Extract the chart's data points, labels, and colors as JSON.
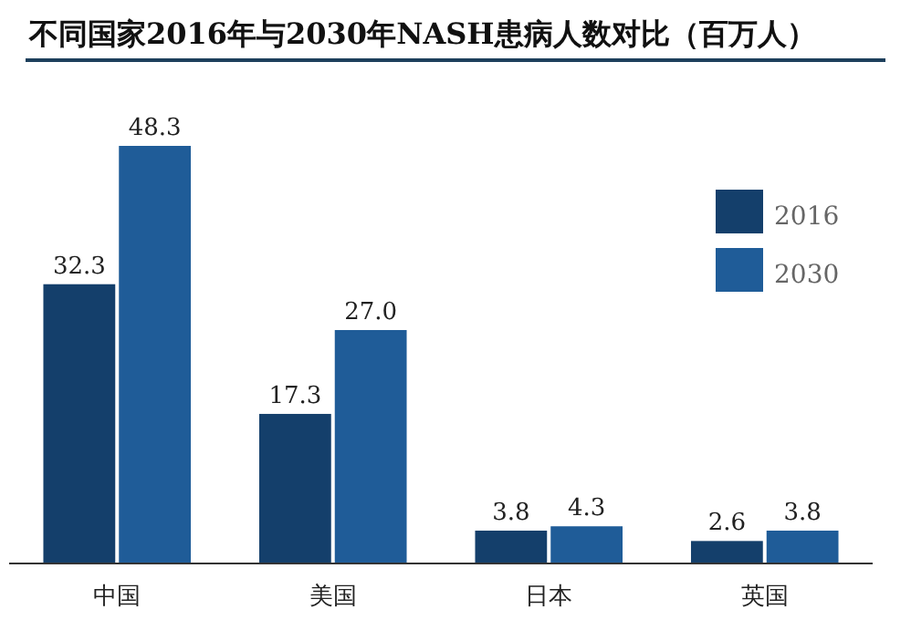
{
  "chart_data": {
    "type": "bar",
    "title": "不同国家2016年与2030年NASH患病人数对比（百万人）",
    "categories": [
      "中国",
      "美国",
      "日本",
      "英国"
    ],
    "series": [
      {
        "name": "2016",
        "color": "#143f6b",
        "values": [
          32.3,
          17.3,
          3.8,
          2.6
        ],
        "value_labels": [
          "32.3",
          "17.3",
          "3.8",
          "2.6"
        ]
      },
      {
        "name": "2030",
        "color": "#1f5c98",
        "values": [
          48.3,
          27.0,
          4.3,
          3.8
        ],
        "value_labels": [
          "48.3",
          "27.0",
          "4.3",
          "3.8"
        ]
      }
    ],
    "legend": "top right"
  }
}
